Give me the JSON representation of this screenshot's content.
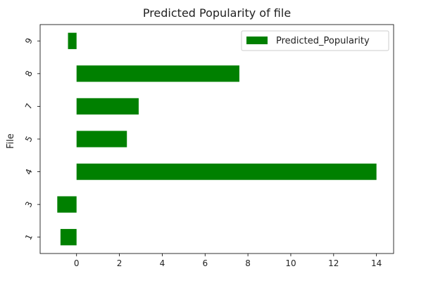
{
  "chart_data": {
    "type": "bar",
    "orientation": "horizontal",
    "title": "Predicted Popularity of file",
    "xlabel": "",
    "ylabel": "File",
    "categories": [
      "1",
      "3",
      "4",
      "5",
      "7",
      "8",
      "9"
    ],
    "series": [
      {
        "name": "Predicted_Popularity",
        "color": "#008000",
        "values": [
          -0.75,
          -0.9,
          14.0,
          2.35,
          2.9,
          7.6,
          -0.4
        ]
      }
    ],
    "xlim": [
      -1.7,
      14.8
    ],
    "xticks": [
      0,
      2,
      4,
      6,
      8,
      10,
      12,
      14
    ],
    "grid": false,
    "legend_position": "top-right"
  }
}
